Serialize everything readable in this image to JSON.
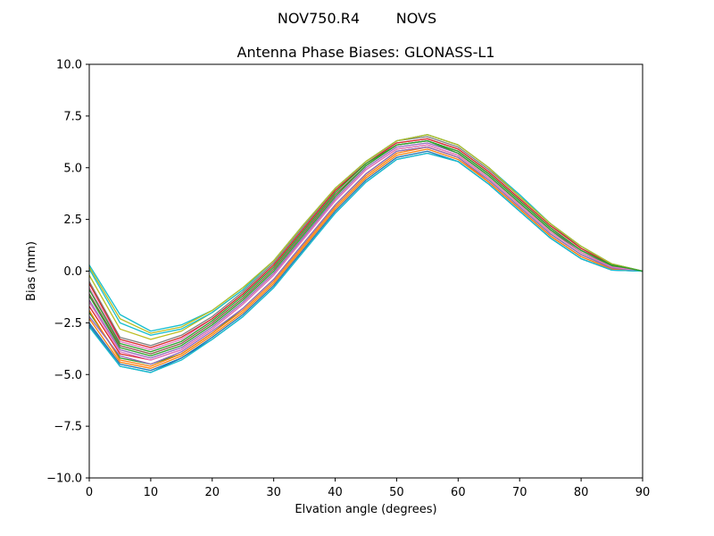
{
  "chart_data": {
    "type": "line",
    "suptitle": "NOV750.R4        NOVS",
    "title": "Antenna Phase Biases: GLONASS-L1",
    "xlabel": "Elvation angle (degrees)",
    "ylabel": "Bias (mm)",
    "xlim": [
      0,
      90
    ],
    "ylim": [
      -10,
      10
    ],
    "xticks": [
      0,
      10,
      20,
      30,
      40,
      50,
      60,
      70,
      80,
      90
    ],
    "yticks": [
      -10.0,
      -7.5,
      -5.0,
      -2.5,
      0.0,
      2.5,
      5.0,
      7.5,
      10.0
    ],
    "xtick_labels": [
      "0",
      "10",
      "20",
      "30",
      "40",
      "50",
      "60",
      "70",
      "80",
      "90"
    ],
    "ytick_labels": [
      "−10.0",
      "−7.5",
      "−5.0",
      "−2.5",
      "0.0",
      "2.5",
      "5.0",
      "7.5",
      "10.0"
    ],
    "grid": false,
    "legend": "none",
    "x": [
      0,
      5,
      10,
      15,
      20,
      25,
      30,
      35,
      40,
      45,
      50,
      55,
      60,
      65,
      70,
      75,
      80,
      85,
      90
    ],
    "series": [
      {
        "color": "#1f77b4",
        "values": [
          -2.6,
          -4.6,
          -4.9,
          -4.2,
          -3.3,
          -2.2,
          -0.8,
          1.0,
          2.8,
          4.3,
          5.4,
          5.7,
          5.3,
          4.2,
          2.9,
          1.6,
          0.6,
          0.05,
          0.0
        ]
      },
      {
        "color": "#ff7f0e",
        "values": [
          -2.3,
          -4.4,
          -4.7,
          -4.1,
          -3.1,
          -2.0,
          -0.6,
          1.2,
          3.0,
          4.5,
          5.6,
          5.9,
          5.4,
          4.3,
          3.0,
          1.7,
          0.7,
          0.1,
          0.0
        ]
      },
      {
        "color": "#2ca02c",
        "values": [
          -2.0,
          -4.2,
          -4.5,
          -4.0,
          -3.0,
          -1.8,
          -0.4,
          1.4,
          3.2,
          4.7,
          5.8,
          6.0,
          5.5,
          4.4,
          3.1,
          1.8,
          0.8,
          0.15,
          0.0
        ]
      },
      {
        "color": "#d62728",
        "values": [
          -1.7,
          -4.0,
          -4.3,
          -3.8,
          -2.8,
          -1.6,
          -0.2,
          1.6,
          3.4,
          4.9,
          5.9,
          6.1,
          5.6,
          4.5,
          3.2,
          1.9,
          0.9,
          0.2,
          0.0
        ]
      },
      {
        "color": "#9467bd",
        "values": [
          -1.4,
          -3.8,
          -4.2,
          -3.7,
          -2.7,
          -1.5,
          -0.1,
          1.7,
          3.5,
          5.0,
          6.0,
          6.2,
          5.7,
          4.6,
          3.3,
          2.0,
          1.0,
          0.25,
          0.0
        ]
      },
      {
        "color": "#8c564b",
        "values": [
          -1.1,
          -3.6,
          -4.0,
          -3.5,
          -2.5,
          -1.3,
          0.1,
          1.9,
          3.7,
          5.1,
          6.1,
          6.3,
          5.8,
          4.7,
          3.4,
          2.1,
          1.0,
          0.3,
          0.0
        ]
      },
      {
        "color": "#e377c2",
        "values": [
          -0.8,
          -3.4,
          -3.8,
          -3.3,
          -2.3,
          -1.1,
          0.3,
          2.1,
          3.9,
          5.3,
          6.2,
          6.4,
          5.9,
          4.8,
          3.5,
          2.2,
          1.1,
          0.3,
          0.0
        ]
      },
      {
        "color": "#7f7f7f",
        "values": [
          -0.5,
          -3.2,
          -3.6,
          -3.1,
          -2.2,
          -1.0,
          0.4,
          2.2,
          4.0,
          5.3,
          6.3,
          6.5,
          6.0,
          4.9,
          3.6,
          2.3,
          1.1,
          0.35,
          0.0
        ]
      },
      {
        "color": "#bcbd22",
        "values": [
          -0.2,
          -2.8,
          -3.3,
          -2.9,
          -2.0,
          -0.9,
          0.5,
          2.3,
          4.0,
          5.3,
          6.3,
          6.6,
          6.1,
          5.0,
          3.6,
          2.3,
          1.2,
          0.35,
          0.0
        ]
      },
      {
        "color": "#17becf",
        "values": [
          0.3,
          -2.1,
          -2.9,
          -2.6,
          -1.9,
          -0.8,
          0.5,
          2.3,
          4.0,
          5.3,
          6.3,
          6.6,
          6.1,
          5.0,
          3.7,
          2.3,
          1.2,
          0.35,
          0.0
        ]
      },
      {
        "color": "#1f77b4",
        "values": [
          -2.5,
          -4.5,
          -4.8,
          -4.2,
          -3.2,
          -2.1,
          -0.7,
          1.1,
          2.9,
          4.4,
          5.5,
          5.8,
          5.3,
          4.2,
          2.9,
          1.6,
          0.6,
          0.05,
          0.0
        ]
      },
      {
        "color": "#ff7f0e",
        "values": [
          -1.9,
          -4.3,
          -4.6,
          -4.0,
          -3.0,
          -1.9,
          -0.5,
          1.3,
          3.1,
          4.6,
          5.7,
          6.0,
          5.5,
          4.3,
          3.0,
          1.7,
          0.7,
          0.1,
          0.0
        ]
      },
      {
        "color": "#2ca02c",
        "values": [
          -1.2,
          -3.7,
          -4.1,
          -3.6,
          -2.6,
          -1.4,
          0.0,
          1.8,
          3.6,
          5.1,
          6.1,
          6.3,
          5.7,
          4.6,
          3.3,
          2.0,
          0.9,
          0.25,
          0.0
        ]
      },
      {
        "color": "#d62728",
        "values": [
          -0.6,
          -3.3,
          -3.7,
          -3.2,
          -2.3,
          -1.1,
          0.3,
          2.1,
          3.9,
          5.2,
          6.2,
          6.4,
          5.9,
          4.8,
          3.5,
          2.2,
          1.1,
          0.3,
          0.0
        ]
      },
      {
        "color": "#17becf",
        "values": [
          0.1,
          -2.5,
          -3.1,
          -2.8,
          -2.0,
          -0.9,
          0.5,
          2.3,
          4.0,
          5.3,
          6.3,
          6.6,
          6.1,
          5.0,
          3.6,
          2.3,
          1.2,
          0.35,
          0.0
        ]
      },
      {
        "color": "#bcbd22",
        "values": [
          0.2,
          -2.3,
          -3.0,
          -2.7,
          -1.9,
          -0.8,
          0.5,
          2.3,
          4.0,
          5.3,
          6.3,
          6.6,
          6.1,
          5.0,
          3.6,
          2.3,
          1.2,
          0.35,
          0.0
        ]
      },
      {
        "color": "#9467bd",
        "values": [
          -2.2,
          -4.1,
          -4.5,
          -3.9,
          -2.9,
          -1.8,
          -0.4,
          1.4,
          3.2,
          4.7,
          5.8,
          6.0,
          5.5,
          4.4,
          3.1,
          1.8,
          0.8,
          0.15,
          0.0
        ]
      },
      {
        "color": "#e377c2",
        "values": [
          -1.5,
          -3.9,
          -4.3,
          -3.8,
          -2.8,
          -1.6,
          -0.2,
          1.6,
          3.4,
          4.9,
          5.9,
          6.1,
          5.6,
          4.5,
          3.2,
          1.9,
          0.9,
          0.2,
          0.0
        ]
      },
      {
        "color": "#17becf",
        "values": [
          -2.7,
          -4.6,
          -4.9,
          -4.3,
          -3.3,
          -2.2,
          -0.8,
          1.0,
          2.8,
          4.3,
          5.4,
          5.7,
          5.3,
          4.2,
          2.9,
          1.6,
          0.6,
          0.05,
          0.0
        ]
      },
      {
        "color": "#2ca02c",
        "values": [
          -0.9,
          -3.5,
          -3.9,
          -3.4,
          -2.4,
          -1.2,
          0.2,
          2.0,
          3.8,
          5.2,
          6.1,
          6.3,
          5.8,
          4.7,
          3.4,
          2.1,
          1.0,
          0.3,
          0.0
        ]
      }
    ]
  }
}
